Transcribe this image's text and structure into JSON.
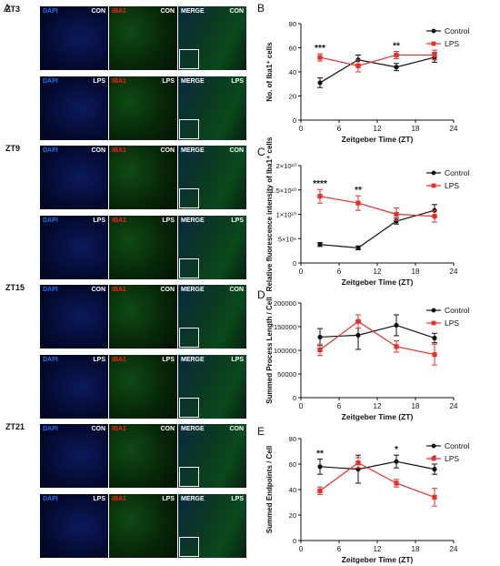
{
  "letters": {
    "a": "A",
    "b": "B",
    "c": "C",
    "d": "D",
    "e": "E"
  },
  "micro": {
    "rows": [
      {
        "zt": "ZT3",
        "cond": "CON"
      },
      {
        "zt": "",
        "cond": "LPS"
      },
      {
        "zt": "ZT9",
        "cond": "CON"
      },
      {
        "zt": "",
        "cond": "LPS"
      },
      {
        "zt": "ZT15",
        "cond": "CON"
      },
      {
        "zt": "",
        "cond": "LPS"
      },
      {
        "zt": "ZT21",
        "cond": "CON"
      },
      {
        "zt": "",
        "cond": "LPS"
      }
    ],
    "channels": [
      "DAPI",
      "IBA1",
      "MERGE"
    ],
    "colors": {
      "dapi": "#1a73e8",
      "iba1": "#ff2020",
      "label_white": "#ffffff"
    }
  },
  "chart_data": [
    {
      "id": "B",
      "type": "line",
      "ylabel": "No. of Iba1⁺ cells",
      "xlabel": "Zeitgeber Time (ZT)",
      "xlim": [
        0,
        24
      ],
      "xticks": [
        "0",
        "6",
        "12",
        "18",
        "24"
      ],
      "ylim": [
        0,
        80
      ],
      "yticks": [
        "0",
        "20",
        "40",
        "60",
        "80"
      ],
      "x": [
        3,
        9,
        15,
        21
      ],
      "series": [
        {
          "name": "Control",
          "color": "#111111",
          "marker": "circle",
          "values": [
            31,
            50,
            44,
            52
          ],
          "errors": [
            4,
            4,
            3,
            4
          ]
        },
        {
          "name": "LPS",
          "color": "#e8302a",
          "marker": "square",
          "values": [
            52,
            45,
            54,
            54
          ],
          "errors": [
            3,
            5,
            3,
            4
          ]
        }
      ],
      "annotations": [
        {
          "x": 3,
          "text": "***"
        },
        {
          "x": 15,
          "text": "**"
        }
      ],
      "legend": "top-right"
    },
    {
      "id": "C",
      "type": "line",
      "ylabel": "Relative fluorescence intensity of Iba1⁺ cells",
      "xlabel": "Zeitgeber Time (ZT)",
      "xlim": [
        0,
        24
      ],
      "xticks": [
        "0",
        "6",
        "12",
        "18",
        "24"
      ],
      "ylim": [
        0,
        20000000000.0
      ],
      "yticks": [
        "0",
        "5×10⁹",
        "1×10¹⁰",
        "1.5×10¹⁰",
        "2×10¹⁰"
      ],
      "x": [
        3,
        9,
        15,
        21
      ],
      "series": [
        {
          "name": "Control",
          "color": "#111111",
          "marker": "circle",
          "values": [
            3800000000.0,
            3100000000.0,
            8600000000.0,
            10800000000.0
          ],
          "errors": [
            400000000.0,
            400000000.0,
            600000000.0,
            1200000000.0
          ]
        },
        {
          "name": "LPS",
          "color": "#e8302a",
          "marker": "square",
          "values": [
            13700000000.0,
            12300000000.0,
            10000000000.0,
            9600000000.0
          ],
          "errors": [
            1400000000.0,
            1500000000.0,
            1300000000.0,
            1200000000.0
          ]
        }
      ],
      "annotations": [
        {
          "x": 3,
          "text": "****"
        },
        {
          "x": 9,
          "text": "**"
        }
      ],
      "legend": "top-right"
    },
    {
      "id": "D",
      "type": "line",
      "ylabel": "Summed Process Length / Cell",
      "xlabel": "Zeitgeber Time (ZT)",
      "xlim": [
        0,
        24
      ],
      "xticks": [
        "0",
        "6",
        "12",
        "18",
        "24"
      ],
      "ylim": [
        0,
        200000
      ],
      "yticks": [
        "0",
        "50000",
        "100000",
        "150000",
        "200000"
      ],
      "x": [
        3,
        9,
        15,
        21
      ],
      "series": [
        {
          "name": "Control",
          "color": "#111111",
          "marker": "circle",
          "values": [
            128000,
            132000,
            153000,
            126000
          ],
          "errors": [
            18000,
            30000,
            22000,
            10000
          ]
        },
        {
          "name": "LPS",
          "color": "#e8302a",
          "marker": "square",
          "values": [
            101000,
            161000,
            108000,
            91000
          ],
          "errors": [
            12000,
            14000,
            12000,
            22000
          ]
        }
      ],
      "annotations": [],
      "legend": "top-right"
    },
    {
      "id": "E",
      "type": "line",
      "ylabel": "Summed Endpoints / Cell",
      "xlabel": "Zeitgeber Time (ZT)",
      "xlim": [
        0,
        24
      ],
      "xticks": [
        "0",
        "6",
        "12",
        "18",
        "24"
      ],
      "ylim": [
        0,
        80
      ],
      "yticks": [
        "0",
        "20",
        "40",
        "60",
        "80"
      ],
      "x": [
        3,
        9,
        15,
        21
      ],
      "series": [
        {
          "name": "Control",
          "color": "#111111",
          "marker": "circle",
          "values": [
            58,
            56,
            62,
            56
          ],
          "errors": [
            6,
            11,
            5,
            4
          ]
        },
        {
          "name": "LPS",
          "color": "#e8302a",
          "marker": "square",
          "values": [
            39,
            61,
            45,
            34
          ],
          "errors": [
            3,
            4,
            3,
            7
          ]
        }
      ],
      "annotations": [
        {
          "x": 3,
          "text": "**"
        },
        {
          "x": 15,
          "text": "*"
        },
        {
          "x": 21,
          "text": "*"
        }
      ],
      "legend": "top-right"
    }
  ]
}
